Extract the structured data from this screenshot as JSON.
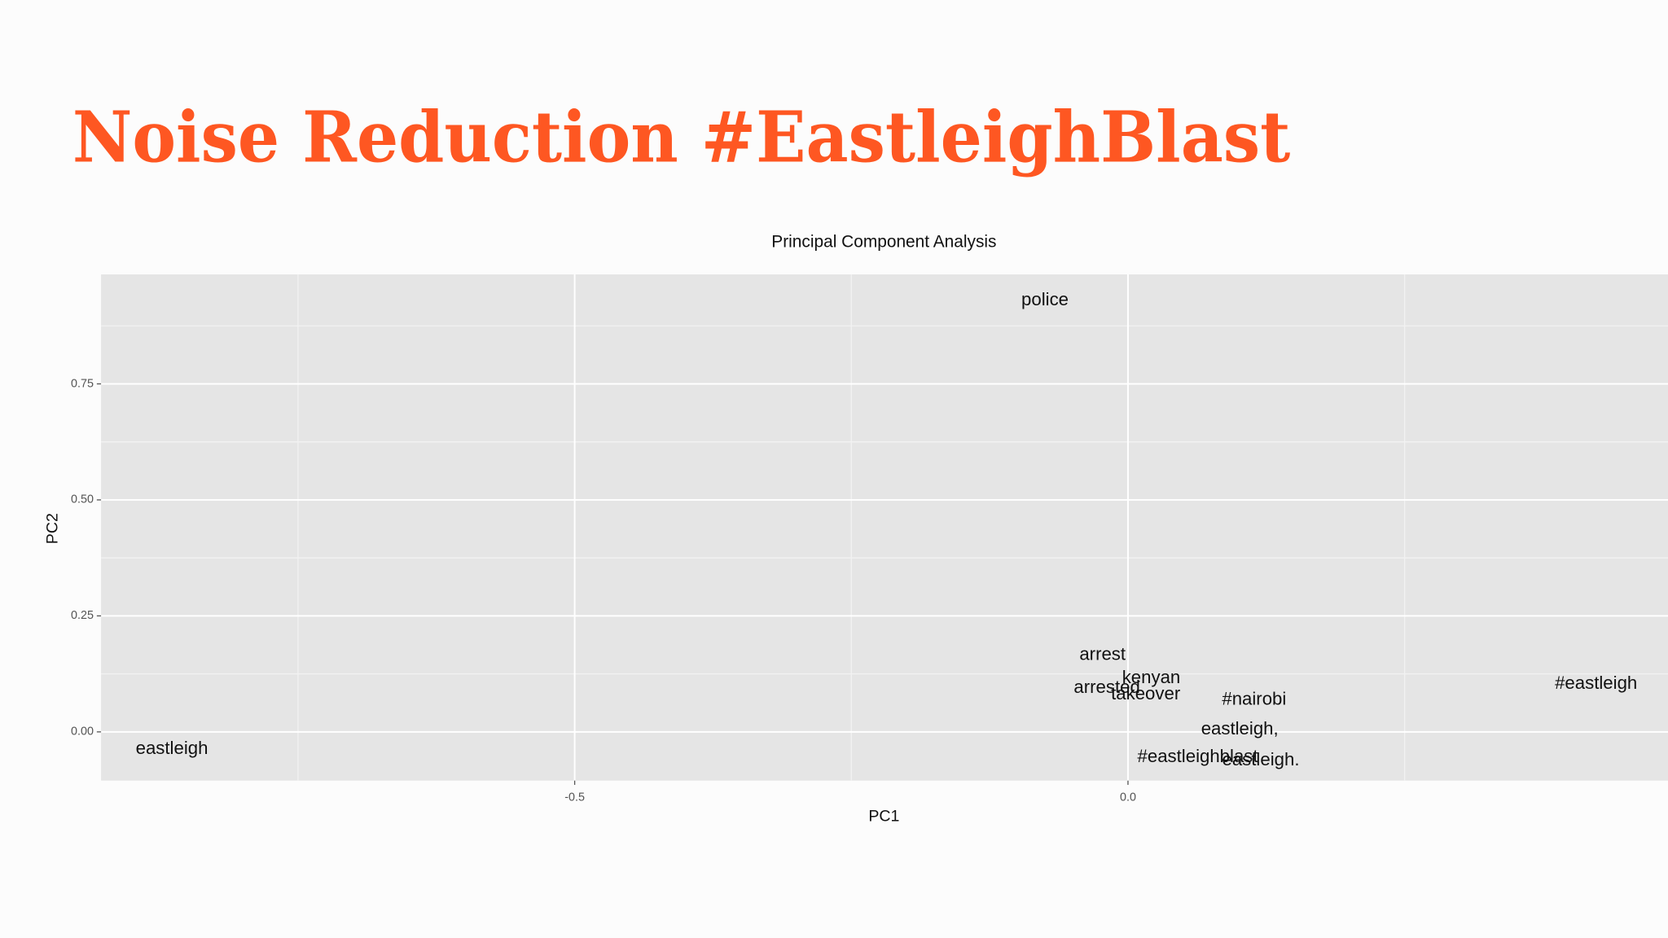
{
  "slide_title": "Noise Reduction #EastleighBlast",
  "chart_data": {
    "type": "scatter",
    "title": "Principal Component Analysis",
    "x_label": "PC1",
    "y_label": "PC2",
    "labels": [
      "police",
      "arrest",
      "kenyan",
      "arrested",
      "takeover",
      "#nairobi",
      "#eastleigh",
      "eastleigh",
      "#eastleighblast",
      "eastleigh.",
      "eastleigh,"
    ],
    "x": [
      -0.075,
      -0.023,
      0.021,
      -0.019,
      0.016,
      0.114,
      0.423,
      -0.864,
      0.063,
      0.12,
      0.101
    ],
    "values": [
      0.93,
      0.165,
      0.115,
      0.094,
      0.08,
      0.069,
      0.103,
      -0.037,
      -0.055,
      -0.062,
      0.005
    ],
    "color": "#111111",
    "xlim": [
      -0.928,
      0.488
    ],
    "ylim": [
      -0.105,
      0.986
    ],
    "xticks": [
      -0.5,
      {
        "value": 0,
        "label": "0.0"
      }
    ],
    "yticks": [
      {
        "value": 0,
        "label": "0.00"
      },
      {
        "value": 0.25,
        "label": "0.25"
      },
      {
        "value": 0.5,
        "label": "0.50"
      },
      {
        "value": 0.75,
        "label": "0.75"
      }
    ],
    "x_minor_grid": [
      -0.75,
      -0.25,
      0.25
    ],
    "y_minor_grid": [
      0.125,
      0.375,
      0.625,
      0.875
    ],
    "grid": true
  }
}
